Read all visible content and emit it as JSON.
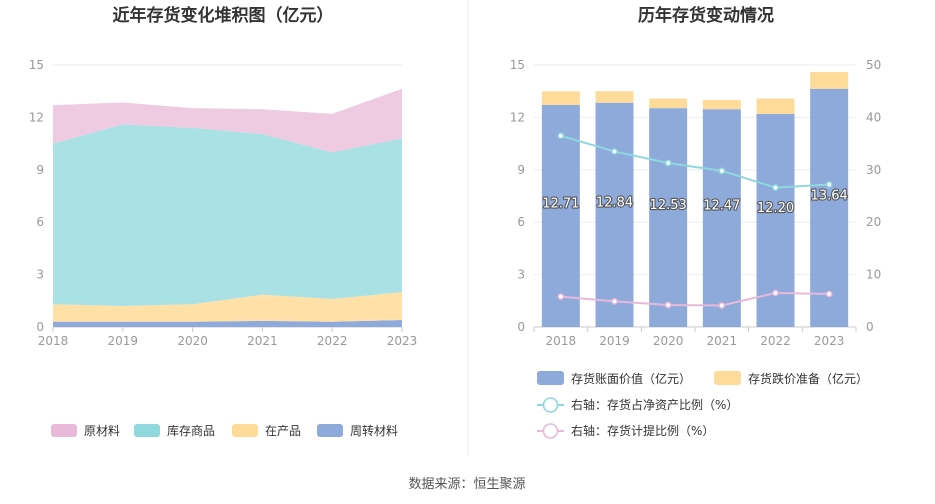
{
  "source_text": "数据来源：恒生聚源",
  "chart_data": [
    {
      "type": "area",
      "title": "近年存货变化堆积图（亿元）",
      "categories": [
        "2018",
        "2019",
        "2020",
        "2021",
        "2022",
        "2023"
      ],
      "yticks": [
        "0",
        "3",
        "6",
        "9",
        "12",
        "15"
      ],
      "ylim": [
        0,
        15
      ],
      "stacked": true,
      "series": [
        {
          "name": "周转材料",
          "color": "#8eaadb",
          "values": [
            0.3,
            0.3,
            0.3,
            0.35,
            0.3,
            0.4
          ]
        },
        {
          "name": "在产品",
          "color": "#ffe1a8",
          "values": [
            1.0,
            0.9,
            1.0,
            1.5,
            1.3,
            1.6
          ]
        },
        {
          "name": "库存商品",
          "color": "#a9e1e5",
          "values": [
            9.2,
            10.4,
            10.1,
            9.2,
            8.4,
            8.8
          ]
        },
        {
          "name": "原材料",
          "color": "#eecbe1",
          "values": [
            2.2,
            1.25,
            1.13,
            1.42,
            2.2,
            2.84
          ]
        }
      ],
      "legend_order": [
        "原材料",
        "库存商品",
        "在产品",
        "周转材料"
      ],
      "legend_colors": {
        "原材料": "#e8b9d9",
        "库存商品": "#8fd8dd",
        "在产品": "#ffdb99",
        "周转材料": "#8eaadb"
      },
      "legend_position": "bottom"
    },
    {
      "type": "bar",
      "title": "历年存货变动情况",
      "categories": [
        "2018",
        "2019",
        "2020",
        "2021",
        "2022",
        "2023"
      ],
      "yticks_left": [
        "0",
        "3",
        "6",
        "9",
        "12",
        "15"
      ],
      "ylim_left": [
        0,
        15
      ],
      "yticks_right": [
        "0",
        "10",
        "20",
        "30",
        "40",
        "50"
      ],
      "ylim_right": [
        0,
        50
      ],
      "bars": [
        {
          "name": "存货账面价值（亿元）",
          "color": "#8eaadb",
          "values": [
            12.71,
            12.84,
            12.53,
            12.47,
            12.2,
            13.64
          ],
          "labels": [
            "12.71",
            "12.84",
            "12.53",
            "12.47",
            "12.20",
            "13.64"
          ]
        },
        {
          "name": "存货跌价准备（亿元）",
          "color": "#ffdb99",
          "values": [
            0.78,
            0.66,
            0.55,
            0.53,
            0.88,
            0.96
          ]
        }
      ],
      "lines": [
        {
          "name": "右轴：存货占净资产比例（%）",
          "color": "#8fd8dd",
          "axis": "right",
          "values": [
            36.5,
            33.5,
            31.3,
            29.8,
            26.6,
            27.2
          ]
        },
        {
          "name": "右轴：存货计提比例（%）",
          "color": "#e8b9d9",
          "axis": "right",
          "values": [
            5.8,
            4.9,
            4.2,
            4.1,
            6.5,
            6.3
          ]
        }
      ],
      "legend_position": "bottom"
    }
  ]
}
